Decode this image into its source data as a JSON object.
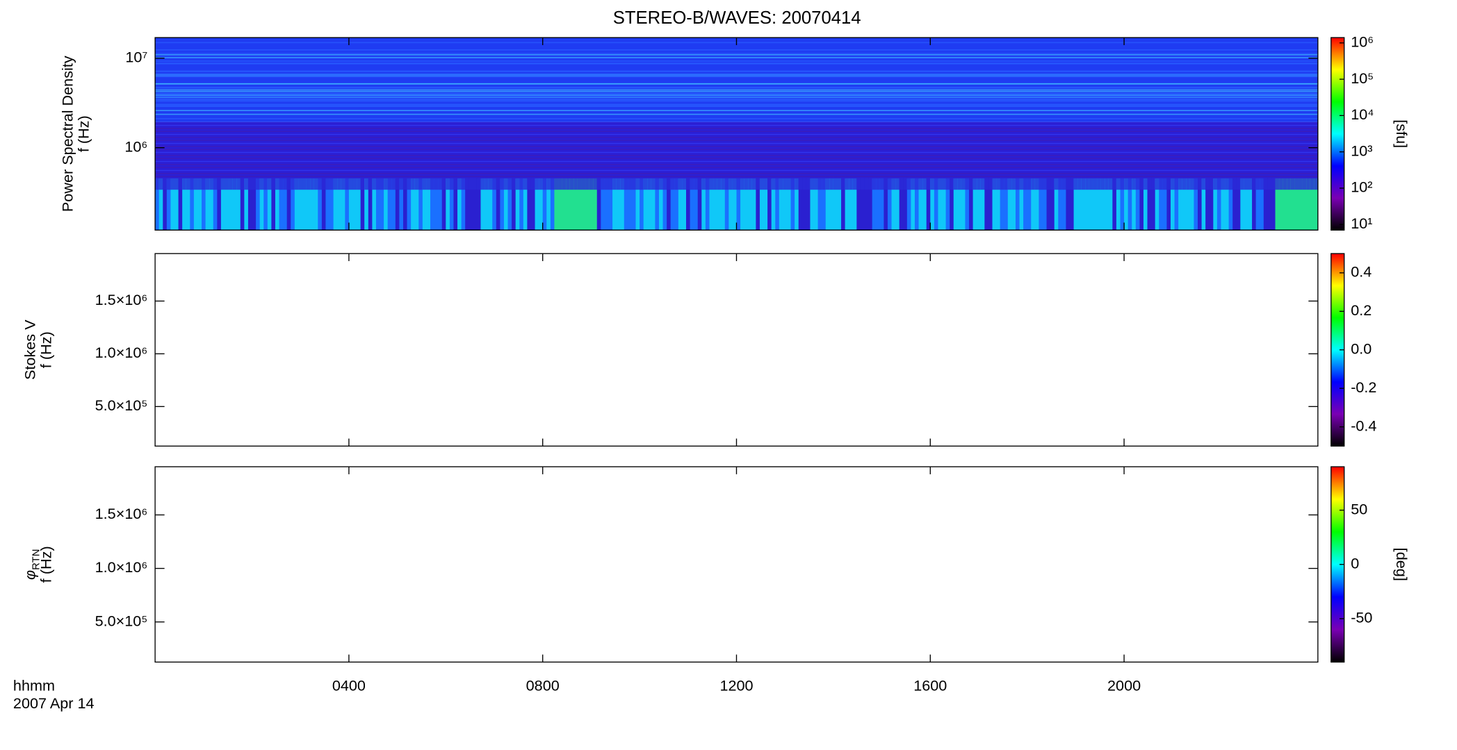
{
  "title": "STEREO-B/WAVES: 20070414",
  "time_label": "hhmm",
  "date_label": "2007 Apr 14",
  "chart_data": [
    {
      "type": "heatmap",
      "ylabel": [
        "Power Spectral Density",
        "f (Hz)"
      ],
      "xlim": [
        0,
        24
      ],
      "xticks": [
        {
          "value": 4,
          "label": "0400"
        },
        {
          "value": 8,
          "label": "0800"
        },
        {
          "value": 12,
          "label": "1200"
        },
        {
          "value": 16,
          "label": "1600"
        },
        {
          "value": 20,
          "label": "2000"
        }
      ],
      "ylog": true,
      "ylim": [
        120000,
        17000000
      ],
      "yticks": [
        {
          "value": 1000000,
          "label": "10⁶"
        },
        {
          "value": 10000000,
          "label": "10⁷"
        }
      ],
      "colorbar": {
        "label": "[sfu]",
        "log": true,
        "lim": [
          7,
          1400000
        ],
        "ticks": [
          {
            "value": 10,
            "label": "10¹"
          },
          {
            "value": 100,
            "label": "10²"
          },
          {
            "value": 1000,
            "label": "10³"
          },
          {
            "value": 10000,
            "label": "10⁴"
          },
          {
            "value": 100000,
            "label": "10⁵"
          },
          {
            "value": 1000000,
            "label": "10⁶"
          }
        ]
      },
      "colormap": [
        "#000000",
        "#7a00b4",
        "#0000ff",
        "#00ffff",
        "#00ff00",
        "#ffff00",
        "#ff0000"
      ]
    },
    {
      "type": "heatmap",
      "ylabel": [
        "Stokes V",
        "f (Hz)"
      ],
      "xlim": [
        0,
        24
      ],
      "xticks": [
        {
          "value": 4,
          "label": "0400"
        },
        {
          "value": 8,
          "label": "0800"
        },
        {
          "value": 12,
          "label": "1200"
        },
        {
          "value": 16,
          "label": "1600"
        },
        {
          "value": 20,
          "label": "2000"
        }
      ],
      "ylim": [
        125000,
        1950000
      ],
      "yticks": [
        {
          "value": 500000,
          "label": "5.0×10⁵"
        },
        {
          "value": 1000000,
          "label": "1.0×10⁶"
        },
        {
          "value": 1500000,
          "label": "1.5×10⁶"
        }
      ],
      "colorbar": {
        "lim": [
          -0.5,
          0.5
        ],
        "ticks": [
          -0.4,
          -0.2,
          {
            "value": 0,
            "label": "0.0"
          },
          0.2,
          0.4
        ]
      },
      "colormap": [
        "#000000",
        "#7a00b4",
        "#0000ff",
        "#00ffff",
        "#00ff00",
        "#ffff00",
        "#ff0000"
      ]
    },
    {
      "type": "heatmap",
      "ylabel": [
        {
          "symbol": "φ",
          "subscript": "RTN"
        },
        "f (Hz)"
      ],
      "xlim": [
        0,
        24
      ],
      "xticks": [
        {
          "value": 4,
          "label": "0400"
        },
        {
          "value": 8,
          "label": "0800"
        },
        {
          "value": 12,
          "label": "1200"
        },
        {
          "value": 16,
          "label": "1600"
        },
        {
          "value": 20,
          "label": "2000"
        }
      ],
      "ylim": [
        125000,
        1950000
      ],
      "yticks": [
        {
          "value": 500000,
          "label": "5.0×10⁵"
        },
        {
          "value": 1000000,
          "label": "1.0×10⁶"
        },
        {
          "value": 1500000,
          "label": "1.5×10⁶"
        }
      ],
      "colorbar": {
        "label": "[deg]",
        "lim": [
          -90,
          90
        ],
        "ticks": [
          -50,
          0,
          50
        ]
      },
      "colormap": [
        "#000000",
        "#7a00b4",
        "#0000ff",
        "#00ffff",
        "#00ff00",
        "#ffff00",
        "#ff0000"
      ]
    }
  ]
}
